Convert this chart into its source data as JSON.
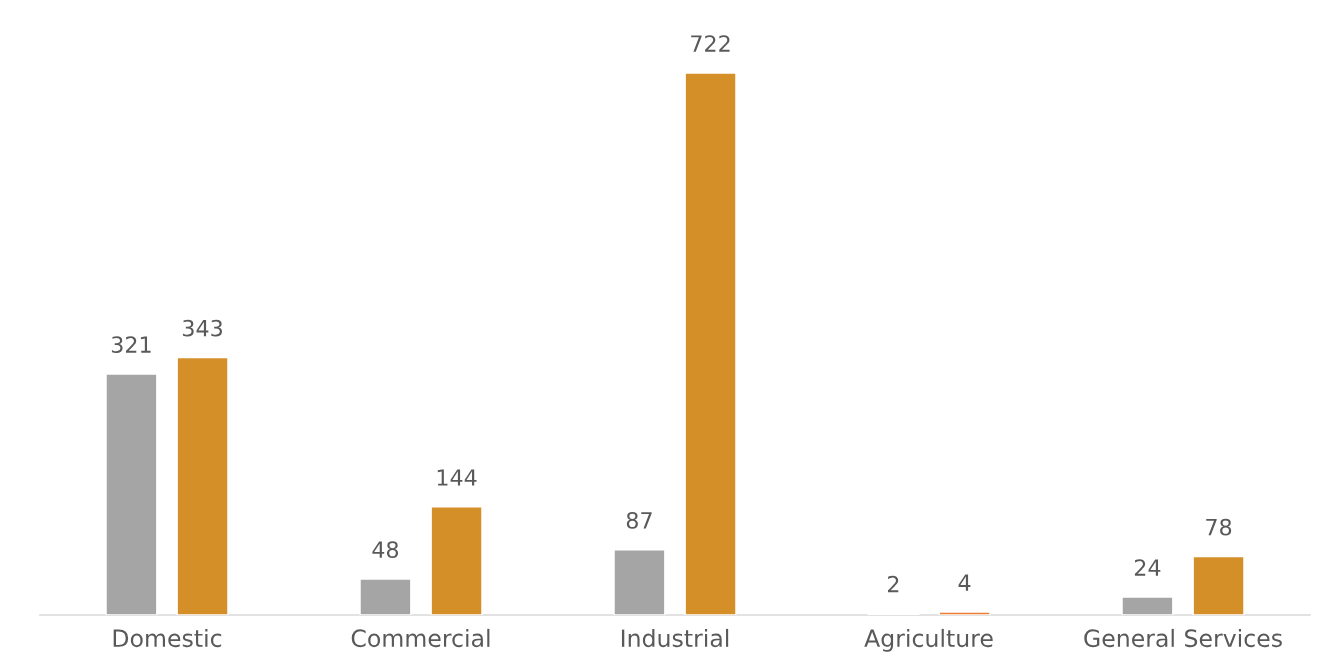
{
  "chart_data": {
    "type": "bar",
    "categories": [
      "Domestic",
      "Commercial",
      "Industrial",
      "Agriculture",
      "General Services"
    ],
    "series": [
      {
        "color": "#a5a5a5",
        "values": [
          321,
          48,
          87,
          2,
          24
        ]
      },
      {
        "color": "#d48f29",
        "colors": [
          null,
          null,
          null,
          "#ed7d31",
          null
        ],
        "values": [
          343,
          144,
          722,
          4,
          78
        ]
      }
    ],
    "data_labels": true,
    "grid": false,
    "tick_labels": "x"
  }
}
